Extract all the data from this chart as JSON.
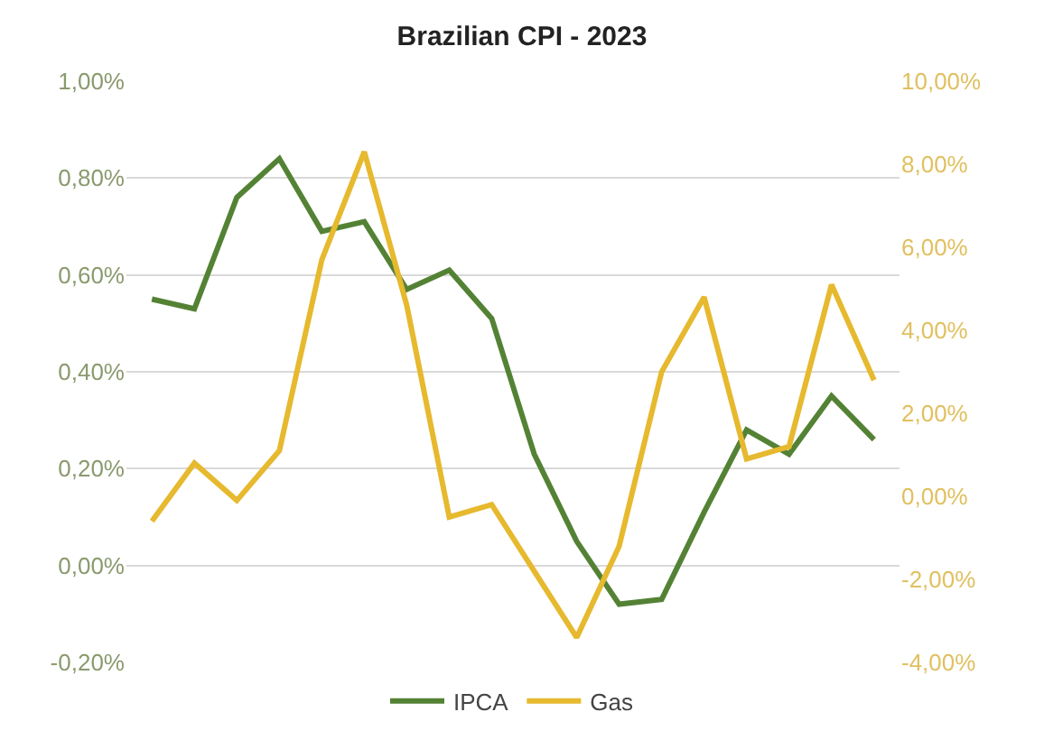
{
  "chart_data": {
    "type": "line",
    "title": "Brazilian CPI - 2023",
    "categories": [
      null,
      null,
      null,
      null,
      null,
      null,
      null,
      null,
      null,
      null,
      null,
      null,
      null,
      null,
      null,
      null,
      null,
      null
    ],
    "series": [
      {
        "name": "IPCA",
        "color": "#548235",
        "values": [
          0.55,
          0.53,
          0.76,
          0.84,
          0.69,
          0.71,
          0.57,
          0.61,
          0.51,
          0.23,
          0.05,
          -0.08,
          -0.07,
          0.11,
          0.28,
          0.23,
          0.35,
          0.26
        ]
      },
      {
        "name": "Gas",
        "color": "#e6b92e",
        "axis": "y2",
        "values": [
          -0.6,
          0.8,
          -0.1,
          1.1,
          5.7,
          8.3,
          4.6,
          -0.5,
          -0.2,
          -1.8,
          -3.4,
          -1.2,
          3.0,
          4.8,
          0.9,
          1.2,
          5.1,
          2.8
        ]
      }
    ],
    "ylim": [
      -0.2,
      1.0
    ],
    "yticks": [
      {
        "value": -0.2,
        "label": "-0,20%"
      },
      {
        "value": 0,
        "label": "0,00%"
      },
      {
        "value": 0.2,
        "label": "0,20%"
      },
      {
        "value": 0.4,
        "label": "0,40%"
      },
      {
        "value": 0.6,
        "label": "0,60%"
      },
      {
        "value": 0.8,
        "label": "0,80%"
      },
      {
        "value": 1.0,
        "label": "1,00%"
      }
    ],
    "y2lim": [
      -4,
      10
    ],
    "y2ticks": [
      {
        "value": -4,
        "label": "-4,00%"
      },
      {
        "value": -2,
        "label": "-2,00%"
      },
      {
        "value": 0,
        "label": "0,00%"
      },
      {
        "value": 2,
        "label": "2,00%"
      },
      {
        "value": 4,
        "label": "4,00%"
      },
      {
        "value": 6,
        "label": "6,00%"
      },
      {
        "value": 8,
        "label": "8,00%"
      },
      {
        "value": 10,
        "label": "10,00%"
      }
    ],
    "grid": "y",
    "legend": "bottom",
    "marker": "none",
    "line_style": "solid"
  }
}
